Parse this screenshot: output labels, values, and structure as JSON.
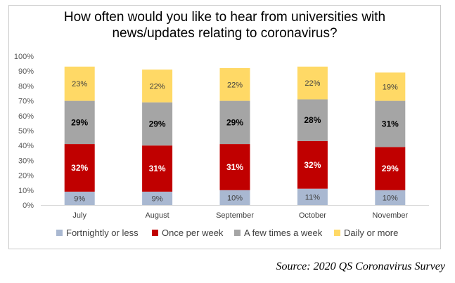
{
  "chart_data": {
    "type": "bar",
    "stacked": true,
    "title_lines": [
      "How often would you like to hear from universities with",
      "news/updates relating to coronavirus?"
    ],
    "categories": [
      "July",
      "August",
      "September",
      "October",
      "November"
    ],
    "y_ticks": [
      "0%",
      "10%",
      "20%",
      "30%",
      "40%",
      "50%",
      "60%",
      "70%",
      "80%",
      "90%",
      "100%"
    ],
    "ylim": [
      0,
      100
    ],
    "series": [
      {
        "name": "Fortnightly or less",
        "color": "#a9b8d1",
        "values": [
          9,
          9,
          10,
          11,
          10
        ],
        "labels": [
          "9%",
          "9%",
          "10%",
          "11%",
          "10%"
        ],
        "label_color": "#404040",
        "label_bold": false
      },
      {
        "name": "Once per week",
        "color": "#c00000",
        "values": [
          32,
          31,
          31,
          32,
          29
        ],
        "labels": [
          "32%",
          "31%",
          "31%",
          "32%",
          "29%"
        ],
        "label_color": "#ffffff",
        "label_bold": true
      },
      {
        "name": "A few times a week",
        "color": "#a5a5a5",
        "values": [
          29,
          29,
          29,
          28,
          31
        ],
        "labels": [
          "29%",
          "29%",
          "29%",
          "28%",
          "31%"
        ],
        "label_color": "#000000",
        "label_bold": true
      },
      {
        "name": "Daily or more",
        "color": "#ffd966",
        "values": [
          23,
          22,
          22,
          22,
          19
        ],
        "labels": [
          "23%",
          "22%",
          "22%",
          "22%",
          "19%"
        ],
        "label_color": "#404040",
        "label_bold": false
      }
    ],
    "legend_position": "bottom",
    "grid": false
  },
  "source": "Source: 2020 QS Coronavirus Survey"
}
